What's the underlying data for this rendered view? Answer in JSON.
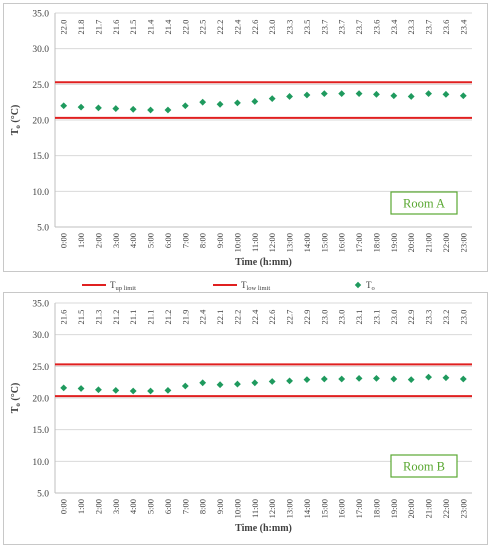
{
  "colors": {
    "limit_line": "#e02020",
    "marker": "#1f9a5e",
    "grid": "#d9d9d9",
    "axis": "#bfbfbf",
    "room_label": "#5aa832",
    "frame": "#c8c8c8"
  },
  "legend": {
    "position": "between-panels",
    "items": [
      {
        "symbol": "red-line",
        "base": "T",
        "sub": "up limit"
      },
      {
        "symbol": "red-line",
        "base": "T",
        "sub": "low limit"
      },
      {
        "symbol": "green-diamond",
        "base": "T",
        "sub": "o"
      }
    ]
  },
  "chart_data": [
    {
      "type": "scatter",
      "room_label": "Room A",
      "xlabel": "Time (h:mm)",
      "ylabel": {
        "base": "T",
        "sub": "o",
        "unit": " (°C)"
      },
      "ylim": [
        5.0,
        35.0
      ],
      "yticks": [
        "5.0",
        "10.0",
        "15.0",
        "20.0",
        "25.0",
        "30.0",
        "35.0"
      ],
      "grid": true,
      "categories": [
        "0:00",
        "1:00",
        "2:00",
        "3:00",
        "4:00",
        "5:00",
        "6:00",
        "7:00",
        "8:00",
        "9:00",
        "10:00",
        "11:00",
        "12:00",
        "13:00",
        "14:00",
        "15:00",
        "16:00",
        "17:00",
        "18:00",
        "19:00",
        "20:00",
        "21:00",
        "22:00",
        "23:00"
      ],
      "values": [
        22.0,
        21.8,
        21.7,
        21.6,
        21.5,
        21.4,
        21.4,
        22.0,
        22.5,
        22.2,
        22.4,
        22.6,
        23.0,
        23.3,
        23.5,
        23.7,
        23.7,
        23.7,
        23.6,
        23.4,
        23.3,
        23.7,
        23.6,
        23.4
      ],
      "value_labels": [
        "22.0",
        "21.8",
        "21.7",
        "21.6",
        "21.5",
        "21.4",
        "21.4",
        "22.0",
        "22.5",
        "22.2",
        "22.4",
        "22.6",
        "23.0",
        "23.3",
        "23.5",
        "23.7",
        "23.7",
        "23.7",
        "23.6",
        "23.4",
        "23.3",
        "23.7",
        "23.6",
        "23.4"
      ],
      "up_limit": 25.3,
      "low_limit": 20.3
    },
    {
      "type": "scatter",
      "room_label": "Room B",
      "xlabel": "Time (h:mm)",
      "ylabel": {
        "base": "T",
        "sub": "o",
        "unit": " (°C)"
      },
      "ylim": [
        5.0,
        35.0
      ],
      "yticks": [
        "5.0",
        "10.0",
        "15.0",
        "20.0",
        "25.0",
        "30.0",
        "35.0"
      ],
      "grid": true,
      "categories": [
        "0:00",
        "1:00",
        "2:00",
        "3:00",
        "4:00",
        "5:00",
        "6:00",
        "7:00",
        "8:00",
        "9:00",
        "10:00",
        "11:00",
        "12:00",
        "13:00",
        "14:00",
        "15:00",
        "16:00",
        "17:00",
        "18:00",
        "19:00",
        "20:00",
        "21:00",
        "22:00",
        "23:00"
      ],
      "values": [
        21.6,
        21.5,
        21.3,
        21.2,
        21.1,
        21.1,
        21.2,
        21.9,
        22.4,
        22.1,
        22.2,
        22.4,
        22.6,
        22.7,
        22.9,
        23.0,
        23.0,
        23.1,
        23.1,
        23.0,
        22.9,
        23.3,
        23.2,
        23.0
      ],
      "value_labels": [
        "21.6",
        "21.5",
        "21.3",
        "21.2",
        "21.1",
        "21.1",
        "21.2",
        "21.9",
        "22.4",
        "22.1",
        "22.2",
        "22.4",
        "22.6",
        "22.7",
        "22.9",
        "23.0",
        "23.0",
        "23.1",
        "23.1",
        "23.0",
        "22.9",
        "23.3",
        "23.2",
        "23.0"
      ],
      "up_limit": 25.3,
      "low_limit": 20.3
    }
  ]
}
